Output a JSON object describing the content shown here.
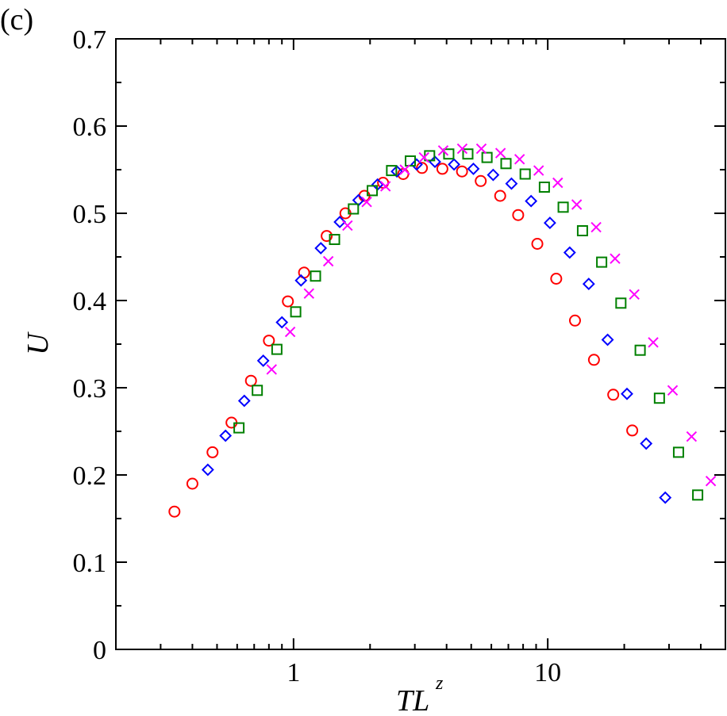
{
  "panel_label": "(c)",
  "chart_data": {
    "type": "scatter",
    "xlabel": "TL",
    "xlabel_superscript": "z",
    "ylabel": "U",
    "xscale": "log",
    "xlim": [
      0.2,
      50
    ],
    "ylim": [
      0,
      0.7
    ],
    "x_tick_labels": [
      "1",
      "10"
    ],
    "y_tick_labels": [
      "0",
      "0.1",
      "0.2",
      "0.3",
      "0.4",
      "0.5",
      "0.6",
      "0.7"
    ],
    "grid": false,
    "legend": "none",
    "series": [
      {
        "marker": "circle",
        "color": "#ff0000",
        "points": [
          [
            0.34,
            0.158
          ],
          [
            0.4,
            0.19
          ],
          [
            0.48,
            0.226
          ],
          [
            0.57,
            0.26
          ],
          [
            0.68,
            0.308
          ],
          [
            0.8,
            0.354
          ],
          [
            0.95,
            0.399
          ],
          [
            1.1,
            0.432
          ],
          [
            1.35,
            0.474
          ],
          [
            1.6,
            0.5
          ],
          [
            1.9,
            0.52
          ],
          [
            2.25,
            0.535
          ],
          [
            2.7,
            0.545
          ],
          [
            3.2,
            0.552
          ],
          [
            3.85,
            0.551
          ],
          [
            4.6,
            0.548
          ],
          [
            5.45,
            0.537
          ],
          [
            6.5,
            0.52
          ],
          [
            7.65,
            0.498
          ],
          [
            9.1,
            0.465
          ],
          [
            10.8,
            0.425
          ],
          [
            12.8,
            0.377
          ],
          [
            15.2,
            0.332
          ],
          [
            18.1,
            0.292
          ],
          [
            21.5,
            0.251
          ]
        ]
      },
      {
        "marker": "diamond",
        "color": "#0000ff",
        "points": [
          [
            0.46,
            0.206
          ],
          [
            0.54,
            0.245
          ],
          [
            0.64,
            0.285
          ],
          [
            0.76,
            0.331
          ],
          [
            0.9,
            0.375
          ],
          [
            1.07,
            0.423
          ],
          [
            1.28,
            0.46
          ],
          [
            1.52,
            0.49
          ],
          [
            1.8,
            0.515
          ],
          [
            2.14,
            0.533
          ],
          [
            2.55,
            0.548
          ],
          [
            3.05,
            0.556
          ],
          [
            3.6,
            0.559
          ],
          [
            4.28,
            0.556
          ],
          [
            5.1,
            0.551
          ],
          [
            6.1,
            0.544
          ],
          [
            7.2,
            0.534
          ],
          [
            8.6,
            0.514
          ],
          [
            10.2,
            0.489
          ],
          [
            12.2,
            0.455
          ],
          [
            14.5,
            0.419
          ],
          [
            17.2,
            0.355
          ],
          [
            20.5,
            0.293
          ],
          [
            24.4,
            0.236
          ],
          [
            29.0,
            0.174
          ]
        ]
      },
      {
        "marker": "square",
        "color": "#008000",
        "points": [
          [
            0.61,
            0.254
          ],
          [
            0.72,
            0.297
          ],
          [
            0.86,
            0.344
          ],
          [
            1.02,
            0.387
          ],
          [
            1.22,
            0.428
          ],
          [
            1.45,
            0.47
          ],
          [
            1.72,
            0.505
          ],
          [
            2.04,
            0.526
          ],
          [
            2.43,
            0.549
          ],
          [
            2.88,
            0.56
          ],
          [
            3.43,
            0.566
          ],
          [
            4.08,
            0.568
          ],
          [
            4.85,
            0.568
          ],
          [
            5.77,
            0.564
          ],
          [
            6.85,
            0.557
          ],
          [
            8.15,
            0.545
          ],
          [
            9.7,
            0.53
          ],
          [
            11.5,
            0.507
          ],
          [
            13.7,
            0.48
          ],
          [
            16.3,
            0.444
          ],
          [
            19.4,
            0.397
          ],
          [
            23.1,
            0.343
          ],
          [
            27.5,
            0.288
          ],
          [
            32.7,
            0.226
          ],
          [
            38.9,
            0.177
          ]
        ]
      },
      {
        "marker": "cross",
        "color": "#ff00ff",
        "points": [
          [
            0.82,
            0.321
          ],
          [
            0.97,
            0.364
          ],
          [
            1.15,
            0.408
          ],
          [
            1.37,
            0.445
          ],
          [
            1.63,
            0.486
          ],
          [
            1.94,
            0.513
          ],
          [
            2.3,
            0.531
          ],
          [
            2.74,
            0.55
          ],
          [
            3.26,
            0.564
          ],
          [
            3.88,
            0.572
          ],
          [
            4.61,
            0.574
          ],
          [
            5.48,
            0.574
          ],
          [
            6.52,
            0.569
          ],
          [
            7.75,
            0.562
          ],
          [
            9.21,
            0.549
          ],
          [
            10.95,
            0.535
          ],
          [
            13.0,
            0.51
          ],
          [
            15.5,
            0.484
          ],
          [
            18.4,
            0.448
          ],
          [
            21.9,
            0.407
          ],
          [
            26.0,
            0.352
          ],
          [
            31.0,
            0.297
          ],
          [
            36.8,
            0.244
          ],
          [
            43.8,
            0.193
          ]
        ]
      }
    ]
  }
}
